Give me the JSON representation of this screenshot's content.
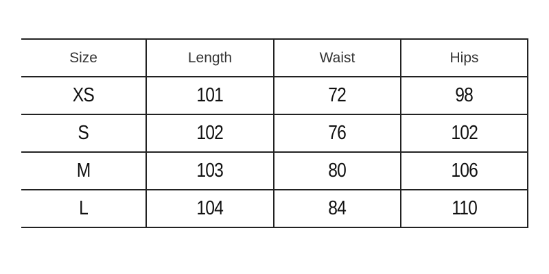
{
  "table": {
    "headers": [
      "Size",
      "Length",
      "Waist",
      "Hips"
    ],
    "rows": [
      [
        "XS",
        "101",
        "72",
        "98"
      ],
      [
        "S",
        "102",
        "76",
        "102"
      ],
      [
        "M",
        "103",
        "80",
        "106"
      ],
      [
        "L",
        "104",
        "84",
        "110"
      ]
    ]
  }
}
